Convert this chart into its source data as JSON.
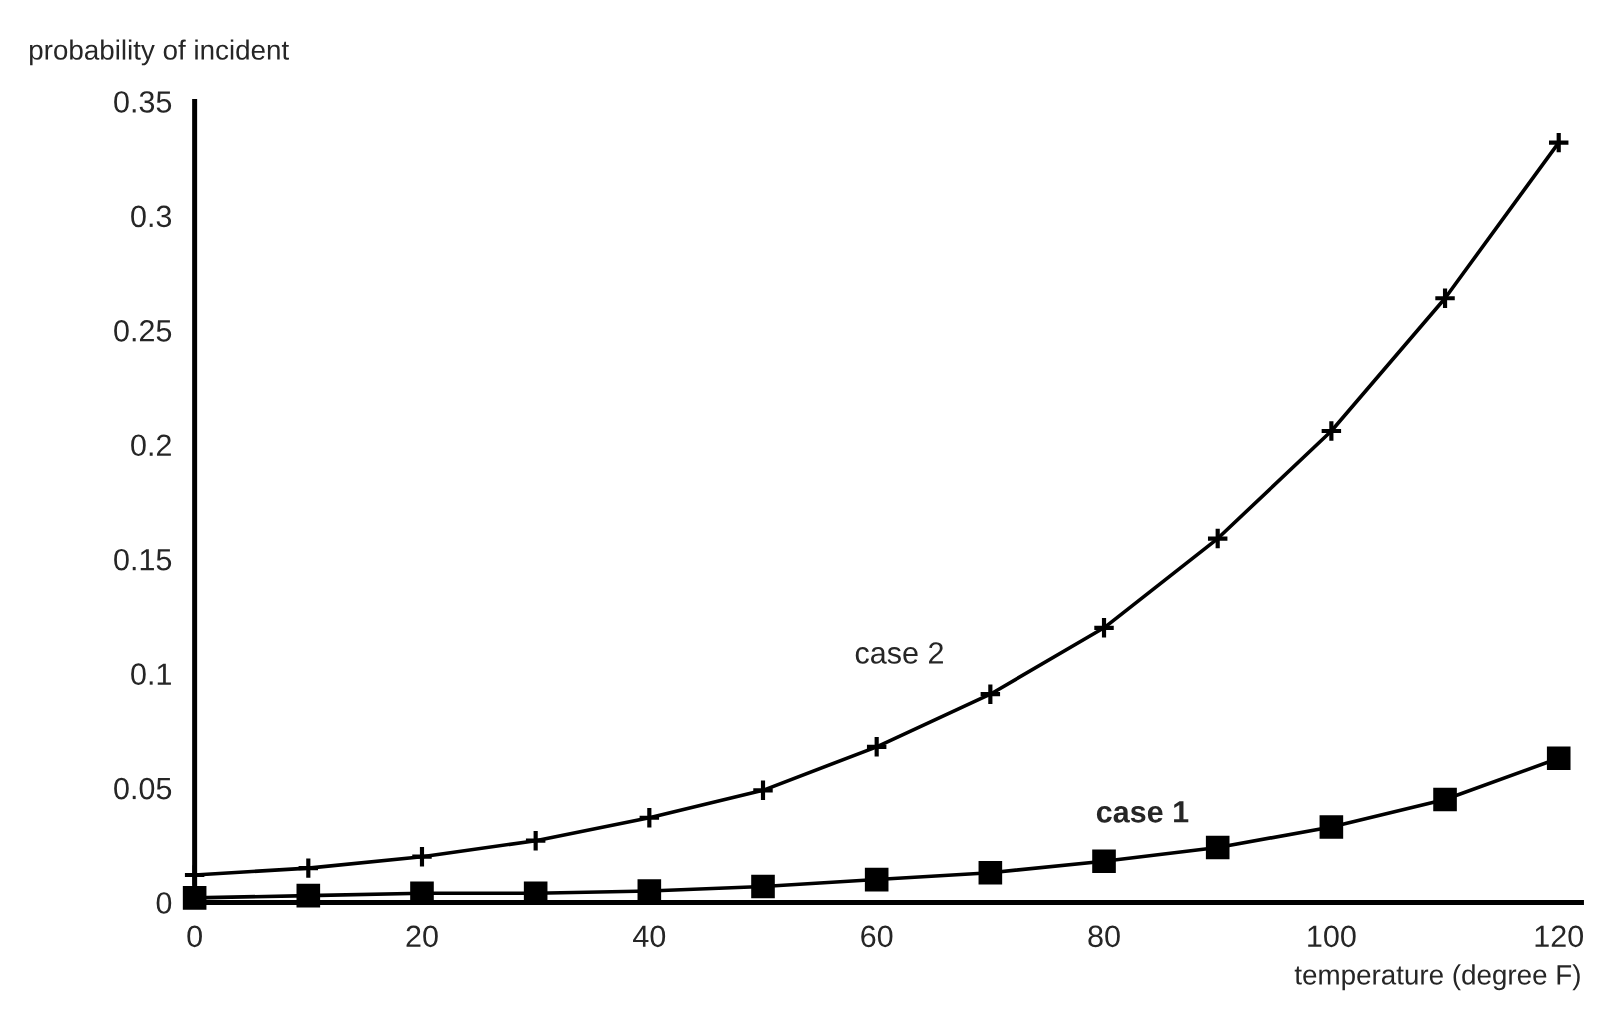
{
  "chart_data": {
    "type": "line",
    "xlabel": "temperature (degree F)",
    "ylabel": "probability of incident",
    "x": [
      0,
      10,
      20,
      30,
      40,
      50,
      60,
      70,
      80,
      90,
      100,
      110,
      120
    ],
    "series": [
      {
        "name": "case 1",
        "color": "#000000",
        "marker": "square",
        "values": [
          0.002,
          0.003,
          0.004,
          0.004,
          0.005,
          0.007,
          0.01,
          0.013,
          0.018,
          0.024,
          0.033,
          0.045,
          0.063
        ]
      },
      {
        "name": "case 2",
        "color": "#000000",
        "marker": "cross",
        "values": [
          0.012,
          0.015,
          0.02,
          0.027,
          0.037,
          0.049,
          0.068,
          0.091,
          0.12,
          0.159,
          0.206,
          0.264,
          0.332
        ]
      }
    ],
    "xlim": [
      0,
      122
    ],
    "ylim": [
      0,
      0.35
    ],
    "xticks": [
      0,
      20,
      40,
      60,
      80,
      100,
      120
    ],
    "yticks": [
      0,
      0.05,
      0.1,
      0.15,
      0.2,
      0.25,
      0.3,
      0.35
    ],
    "grid": false,
    "legend": false,
    "line_style": "solid"
  }
}
